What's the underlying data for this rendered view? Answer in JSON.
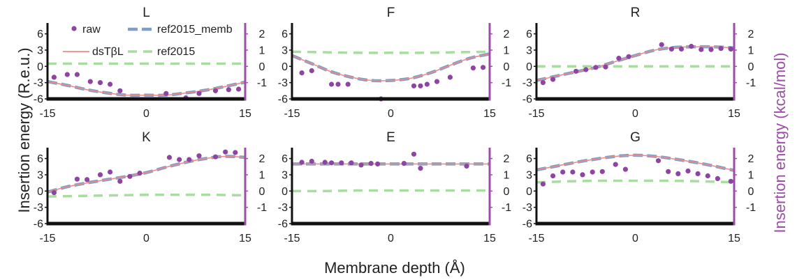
{
  "figure": {
    "xlabel": "Membrane depth (Å)",
    "ylabel_left": "Insertion energy (R.e.u.)",
    "ylabel_right": "Insertion energy (kcal/mol)"
  },
  "colors": {
    "raw": "#8e44a3",
    "dsTbL": "#ef8a8a",
    "ref2015_memb": "#7f9fc7",
    "ref2015": "#a8dca0",
    "right_axis": "#9b4da8",
    "axis": "#111111"
  },
  "legend": [
    {
      "key": "raw",
      "label": "raw"
    },
    {
      "key": "ref2015_memb",
      "label": "ref2015_memb"
    },
    {
      "key": "dsTbL",
      "label": "dsTβL"
    },
    {
      "key": "ref2015",
      "label": "ref2015"
    }
  ],
  "axes": {
    "xlim": [
      -15,
      15
    ],
    "ylim": [
      -6,
      8
    ],
    "xticks": [
      -15,
      0,
      15
    ],
    "yticks_left": [
      -6,
      -3,
      0,
      3,
      6
    ],
    "yticks_left_labels": [
      "-6",
      "-3",
      "0",
      "3",
      "6"
    ],
    "yticks_right_labels": [
      "-1",
      "0",
      "1",
      "2"
    ],
    "yticks_right_values": [
      -1,
      0,
      1,
      2
    ],
    "rightlim": [
      -2,
      2.667
    ]
  },
  "chart_data": [
    {
      "type": "scatter+line",
      "title": "L",
      "raw": {
        "x": [
          -14,
          -12,
          -10.5,
          -8.5,
          -7,
          -5.5,
          -4,
          3,
          6,
          8,
          10.5,
          12.5,
          14
        ],
        "y": [
          -2,
          -1.5,
          -1.5,
          -2.8,
          -3,
          -3.3,
          -4.5,
          -5,
          -5.8,
          -5,
          -4.5,
          -4.3,
          -4.2
        ]
      },
      "dsTbL": {
        "x": [
          -15,
          -12,
          -9,
          -6,
          -3,
          0,
          3,
          6,
          9,
          12,
          15
        ],
        "y": [
          -2.8,
          -3.5,
          -4.3,
          -4.9,
          -5.3,
          -5.3,
          -5.3,
          -4.9,
          -4.4,
          -3.7,
          -2.9
        ]
      },
      "ref2015": {
        "x": [
          -15,
          15
        ],
        "y": [
          0.5,
          0.5
        ]
      }
    },
    {
      "type": "scatter+line",
      "title": "F",
      "raw": {
        "x": [
          -13.5,
          -12,
          -9,
          -8,
          -6.5,
          -1.5,
          3.5,
          4.5,
          5.5,
          7,
          9,
          12.5,
          14
        ],
        "y": [
          -1.2,
          -0.8,
          -3.3,
          -3.3,
          -3.3,
          -6,
          -3.6,
          -3.6,
          -3.3,
          -2.8,
          -2,
          -0.3,
          -0.2
        ]
      },
      "dsTbL": {
        "x": [
          -15,
          -12,
          -9,
          -6,
          -3,
          0,
          3,
          6,
          9,
          12,
          15
        ],
        "y": [
          2,
          0.5,
          -1,
          -2,
          -2.6,
          -2.6,
          -2.2,
          -1.2,
          0.2,
          1.5,
          2.3
        ]
      },
      "ref2015": {
        "x": [
          -15,
          -10,
          -5,
          0,
          5,
          10,
          15
        ],
        "y": [
          2.7,
          2.6,
          2.5,
          2.5,
          2.5,
          2.6,
          2.7
        ]
      }
    },
    {
      "type": "scatter+line",
      "title": "R",
      "raw": {
        "x": [
          -14,
          -12.5,
          -9,
          -7.5,
          -6,
          -4.5,
          -2.5,
          -1,
          4,
          5.5,
          7,
          8.5,
          10,
          11.5,
          13,
          14.5
        ],
        "y": [
          -3,
          -2.4,
          -0.9,
          -0.6,
          -0.2,
          -0.1,
          1.5,
          1.8,
          4,
          3.2,
          3.2,
          3.7,
          3.1,
          3.1,
          3.3,
          3.2
        ]
      },
      "dsTbL": {
        "x": [
          -15,
          -12,
          -9,
          -6,
          -3,
          0,
          3,
          6,
          9,
          12,
          15
        ],
        "y": [
          -2.6,
          -1.8,
          -1,
          -0.2,
          0.9,
          2,
          3,
          3.5,
          3.6,
          3.6,
          3.4
        ]
      },
      "ref2015": {
        "x": [
          -15,
          15
        ],
        "y": [
          0,
          0
        ]
      }
    },
    {
      "type": "scatter+line",
      "title": "K",
      "raw": {
        "x": [
          -14,
          -10.5,
          -9,
          -7,
          -5.5,
          -4,
          -2.5,
          -1,
          3.5,
          5,
          6.5,
          8,
          10.5,
          12,
          13.5
        ],
        "y": [
          -0.3,
          2.2,
          2.1,
          3,
          3.5,
          1.8,
          2.7,
          3.3,
          6.2,
          5.8,
          5.8,
          6.5,
          6.3,
          7.2,
          7.1
        ]
      },
      "dsTbL": {
        "x": [
          -15,
          -12,
          -9,
          -6,
          -3,
          0,
          3,
          6,
          9,
          12,
          15
        ],
        "y": [
          -0.2,
          0.8,
          1.5,
          2.1,
          2.7,
          3.4,
          4.4,
          5.3,
          6,
          6.4,
          6.2
        ]
      },
      "ref2015": {
        "x": [
          -15,
          -10,
          -5,
          0,
          5,
          10,
          15
        ],
        "y": [
          -1,
          -0.9,
          -0.8,
          -0.7,
          -0.7,
          -0.7,
          -0.8
        ]
      }
    },
    {
      "type": "scatter+line",
      "title": "E",
      "raw": {
        "x": [
          -13.5,
          -12,
          -10,
          -9,
          -7.5,
          -6,
          -4.5,
          -3,
          -2,
          2,
          3.5,
          4.5,
          11.5
        ],
        "y": [
          5.3,
          5.5,
          5.3,
          5.2,
          5.2,
          5.2,
          4.8,
          5.1,
          5,
          5.1,
          6.8,
          4.2,
          4.6
        ]
      },
      "dsTbL": {
        "x": [
          -15,
          -10,
          -5,
          0,
          5,
          10,
          15
        ],
        "y": [
          5,
          5,
          5,
          5,
          5,
          5,
          5
        ]
      },
      "ref2015": {
        "x": [
          -15,
          -10,
          -5,
          0,
          5,
          10,
          15
        ],
        "y": [
          0,
          0,
          0.1,
          0.1,
          0.1,
          0.1,
          0.1
        ]
      }
    },
    {
      "type": "scatter+line",
      "title": "G",
      "raw": {
        "x": [
          -14,
          -12.5,
          -11,
          -9.5,
          -8,
          -6.5,
          -5,
          -3,
          -1.5,
          3.5,
          5,
          6.5,
          8,
          9.5,
          11,
          12.5,
          14.5
        ],
        "y": [
          1.3,
          2.8,
          3.5,
          3.5,
          3,
          3.5,
          3.6,
          4.9,
          4,
          5.6,
          3.6,
          3.2,
          3.7,
          3.2,
          2.8,
          2.3,
          1.8
        ]
      },
      "dsTbL": {
        "x": [
          -15,
          -12,
          -9,
          -6,
          -3,
          0,
          3,
          6,
          9,
          12,
          15
        ],
        "y": [
          3.9,
          4.6,
          5.3,
          5.9,
          6.4,
          6.6,
          6.4,
          5.9,
          5.3,
          4.6,
          3.8
        ]
      },
      "ref2015": {
        "x": [
          -15,
          -10,
          -5,
          0,
          5,
          10,
          15
        ],
        "y": [
          1.6,
          1.8,
          1.9,
          1.9,
          1.9,
          1.8,
          1.6
        ]
      }
    }
  ]
}
